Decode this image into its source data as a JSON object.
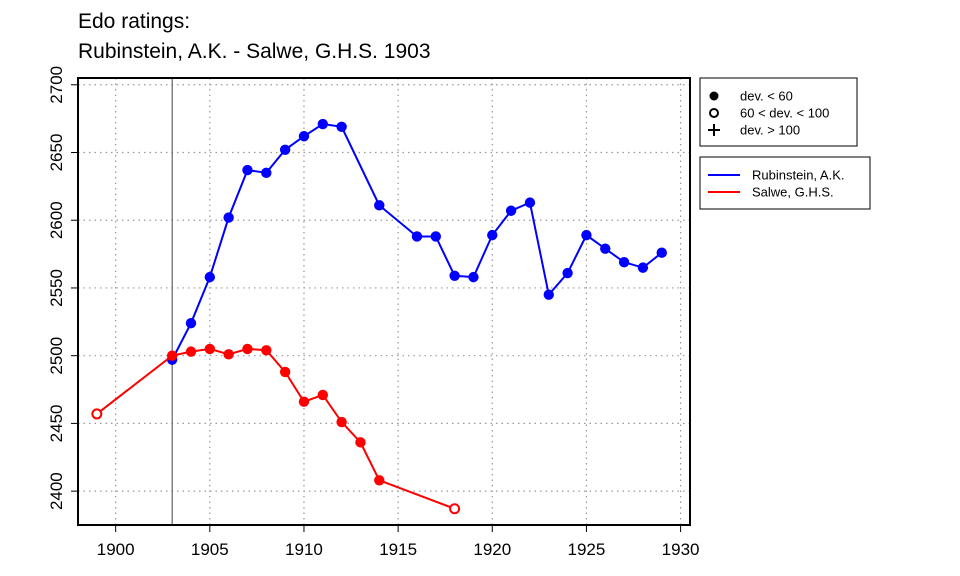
{
  "chart_data": {
    "type": "line",
    "title_lines": [
      "Edo ratings:",
      "Rubinstein, A.K. - Salwe, G.H.S. 1903"
    ],
    "xlabel": "",
    "ylabel": "",
    "xlim": [
      1898,
      1930.5
    ],
    "ylim": [
      2375,
      2705
    ],
    "x_ticks": [
      1900,
      1905,
      1910,
      1915,
      1920,
      1925,
      1930
    ],
    "y_ticks": [
      2400,
      2450,
      2500,
      2550,
      2600,
      2650,
      2700
    ],
    "grid": true,
    "marker_line_year": 1903,
    "series": [
      {
        "name": "Rubinstein, A.K.",
        "color": "#0000ff",
        "points": [
          {
            "x": 1903,
            "y": 2497,
            "marker": "filled"
          },
          {
            "x": 1904,
            "y": 2524,
            "marker": "filled"
          },
          {
            "x": 1905,
            "y": 2558,
            "marker": "filled"
          },
          {
            "x": 1906,
            "y": 2602,
            "marker": "filled"
          },
          {
            "x": 1907,
            "y": 2637,
            "marker": "filled"
          },
          {
            "x": 1908,
            "y": 2635,
            "marker": "filled"
          },
          {
            "x": 1909,
            "y": 2652,
            "marker": "filled"
          },
          {
            "x": 1910,
            "y": 2662,
            "marker": "filled"
          },
          {
            "x": 1911,
            "y": 2671,
            "marker": "filled"
          },
          {
            "x": 1912,
            "y": 2669,
            "marker": "filled"
          },
          {
            "x": 1914,
            "y": 2611,
            "marker": "filled"
          },
          {
            "x": 1916,
            "y": 2588,
            "marker": "filled"
          },
          {
            "x": 1917,
            "y": 2588,
            "marker": "filled"
          },
          {
            "x": 1918,
            "y": 2559,
            "marker": "filled"
          },
          {
            "x": 1919,
            "y": 2558,
            "marker": "filled"
          },
          {
            "x": 1920,
            "y": 2589,
            "marker": "filled"
          },
          {
            "x": 1921,
            "y": 2607,
            "marker": "filled"
          },
          {
            "x": 1922,
            "y": 2613,
            "marker": "filled"
          },
          {
            "x": 1923,
            "y": 2545,
            "marker": "filled"
          },
          {
            "x": 1924,
            "y": 2561,
            "marker": "filled"
          },
          {
            "x": 1925,
            "y": 2589,
            "marker": "filled"
          },
          {
            "x": 1926,
            "y": 2579,
            "marker": "filled"
          },
          {
            "x": 1927,
            "y": 2569,
            "marker": "filled"
          },
          {
            "x": 1928,
            "y": 2565,
            "marker": "filled"
          },
          {
            "x": 1929,
            "y": 2576,
            "marker": "filled"
          }
        ]
      },
      {
        "name": "Salwe, G.H.S.",
        "color": "#ff0000",
        "points": [
          {
            "x": 1899,
            "y": 2457,
            "marker": "open"
          },
          {
            "x": 1903,
            "y": 2500,
            "marker": "filled"
          },
          {
            "x": 1904,
            "y": 2503,
            "marker": "filled"
          },
          {
            "x": 1905,
            "y": 2505,
            "marker": "filled"
          },
          {
            "x": 1906,
            "y": 2501,
            "marker": "filled"
          },
          {
            "x": 1907,
            "y": 2505,
            "marker": "filled"
          },
          {
            "x": 1908,
            "y": 2504,
            "marker": "filled"
          },
          {
            "x": 1909,
            "y": 2488,
            "marker": "filled"
          },
          {
            "x": 1910,
            "y": 2466,
            "marker": "filled"
          },
          {
            "x": 1911,
            "y": 2471,
            "marker": "filled"
          },
          {
            "x": 1912,
            "y": 2451,
            "marker": "filled"
          },
          {
            "x": 1913,
            "y": 2436,
            "marker": "filled"
          },
          {
            "x": 1914,
            "y": 2408,
            "marker": "filled"
          },
          {
            "x": 1918,
            "y": 2387,
            "marker": "open"
          }
        ]
      }
    ],
    "legend_markers": [
      {
        "symbol": "filled",
        "label": "dev. < 60"
      },
      {
        "symbol": "open",
        "label": "60 < dev. < 100"
      },
      {
        "symbol": "plus",
        "label": "dev. > 100"
      }
    ],
    "legend_placement": "right"
  }
}
